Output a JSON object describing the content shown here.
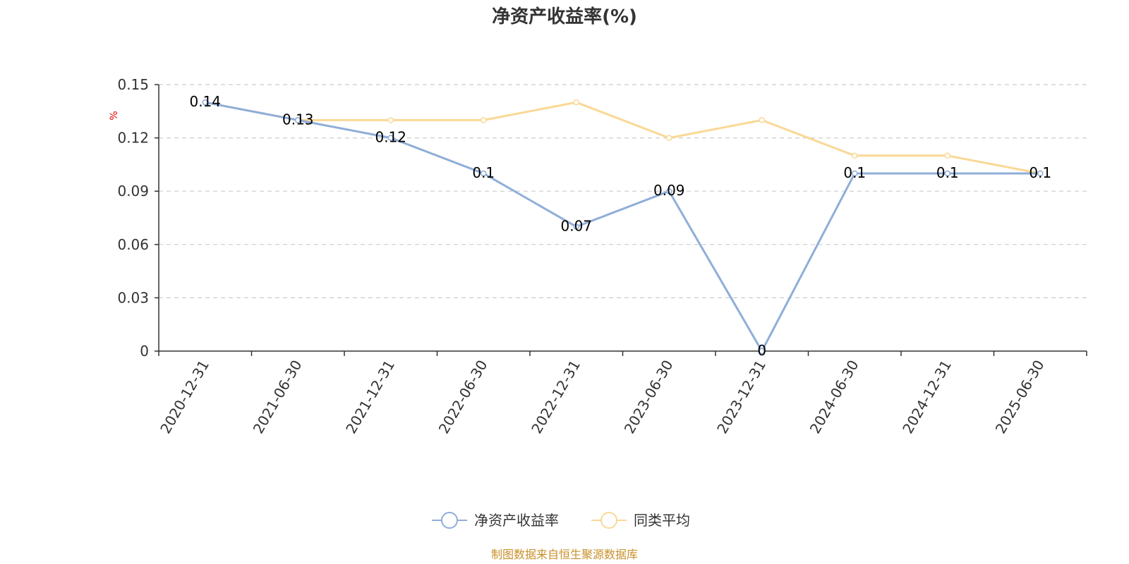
{
  "chart_data": {
    "type": "line",
    "title": "净资产收益率(%)",
    "ylabel": "%",
    "ylim": [
      0,
      0.15
    ],
    "yticks": [
      "0",
      "0.03",
      "0.06",
      "0.09",
      "0.12",
      "0.15"
    ],
    "grid": true,
    "legend_position": "bottom-center",
    "categories": [
      "2020-12-31",
      "2021-06-30",
      "2021-12-31",
      "2022-06-30",
      "2022-12-31",
      "2023-06-30",
      "2023-12-31",
      "2024-06-30",
      "2024-12-31",
      "2025-06-30"
    ],
    "series": [
      {
        "name": "净资产收益率",
        "color": "#8faed8",
        "values": [
          0.14,
          0.13,
          0.12,
          0.1,
          0.07,
          0.09,
          0,
          0.1,
          0.1,
          0.1
        ],
        "labels": [
          "0.14",
          "0.13",
          "0.12",
          "0.1",
          "0.07",
          "0.09",
          "0",
          "0.1",
          "0.1",
          "0.1"
        ]
      },
      {
        "name": "同类平均",
        "color": "#fad896",
        "values": [
          0.14,
          0.13,
          0.13,
          0.13,
          0.14,
          0.12,
          0.13,
          0.11,
          0.11,
          0.1
        ]
      }
    ],
    "source": "制图数据来自恒生聚源数据库"
  }
}
